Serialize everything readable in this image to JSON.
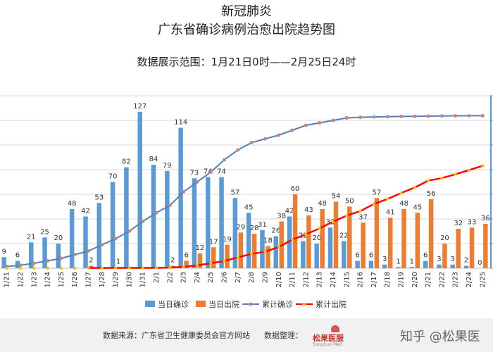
{
  "titles": {
    "line1": "新冠肺炎",
    "line2": "广东省确诊病例治愈出院趋势图",
    "line3": "数据展示范围：1月21日0时——2月25日24时"
  },
  "footer": {
    "source": "数据来源：广东省卫生健康委员会官方网站",
    "organizer": "数据整理：",
    "logo_text": "松果医服",
    "logo_sub": "SongGuo Med",
    "watermark": "知乎 @松果医"
  },
  "colors": {
    "daily_confirmed": "#5b9bd5",
    "daily_discharged": "#ed7d31",
    "cum_confirmed_line": "#4f81bd",
    "cum_confirmed_marker": "#c0877a",
    "cum_discharged_line": "#ff0000",
    "cum_discharged_marker": "#f2c200",
    "gridline": "#d9d9d9",
    "right_axis": "#5b9bd5"
  },
  "chart_data": {
    "type": "bar",
    "categories": [
      "1/21",
      "1/22",
      "1/23",
      "1/24",
      "1/25",
      "1/26",
      "1/27",
      "1/28",
      "1/29",
      "1/30",
      "1/31",
      "2/1",
      "2/2",
      "2/3",
      "2/4",
      "2/5",
      "2/6",
      "2/7",
      "2/8",
      "2/9",
      "2/10",
      "2/11",
      "2/12",
      "2/13",
      "2/14",
      "2/15",
      "2/16",
      "2/17",
      "2/18",
      "2/19",
      "2/20",
      "2/21",
      "2/22",
      "2/23",
      "2/24",
      "2/25"
    ],
    "series": [
      {
        "name": "当日确诊",
        "type": "bar",
        "values": [
          9,
          6,
          21,
          25,
          20,
          48,
          42,
          53,
          70,
          82,
          127,
          84,
          79,
          114,
          73,
          74,
          74,
          57,
          45,
          31,
          26,
          42,
          22,
          20,
          33,
          22,
          6,
          6,
          3,
          1,
          1,
          6,
          3,
          3,
          2,
          0
        ],
        "labels": [
          "9",
          "6",
          "21",
          "25",
          "20",
          "48",
          "42",
          "53",
          "70",
          "82",
          "127",
          "84",
          "79",
          "114",
          "73",
          "74",
          "74",
          "57",
          "45",
          "31",
          "26",
          "42",
          "22",
          "20",
          "33",
          "22",
          "6",
          "6",
          "3",
          "1",
          "1",
          "6",
          "3",
          "3",
          "2",
          "0"
        ]
      },
      {
        "name": "当日出院",
        "type": "bar",
        "values": [
          0,
          0,
          0,
          0,
          0,
          0,
          2,
          0,
          1,
          0,
          0,
          0,
          2,
          6,
          12,
          17,
          19,
          29,
          28,
          18,
          38,
          60,
          43,
          48,
          54,
          50,
          37,
          57,
          41,
          48,
          45,
          56,
          20,
          32,
          33,
          36
        ],
        "labels": [
          "",
          "",
          "",
          "",
          "",
          "",
          "2",
          "",
          "1",
          "",
          "",
          "",
          "2",
          "6",
          "12",
          "17",
          "19",
          "29",
          "28",
          "18",
          "38",
          "60",
          "43",
          "48",
          "54",
          "50",
          "37",
          "57",
          "41",
          "48",
          "45",
          "56",
          "20",
          "32",
          "33",
          "36"
        ]
      },
      {
        "name": "累计确诊",
        "type": "line",
        "values": [
          14,
          24,
          40,
          60,
          80,
          110,
          140,
          190,
          240,
          300,
          380,
          450,
          510,
          620,
          700,
          780,
          880,
          960,
          1020,
          1050,
          1080,
          1120,
          1160,
          1180,
          1200,
          1220,
          1225,
          1228,
          1230,
          1232,
          1233,
          1234,
          1236,
          1237,
          1238,
          1238
        ]
      },
      {
        "name": "累计出院",
        "type": "line",
        "values": [
          0,
          0,
          0,
          0,
          0,
          0,
          2,
          2,
          3,
          3,
          3,
          3,
          5,
          11,
          23,
          40,
          59,
          88,
          116,
          134,
          172,
          232,
          275,
          323,
          377,
          427,
          464,
          521,
          562,
          610,
          655,
          711,
          731,
          763,
          796,
          832
        ]
      }
    ],
    "ylim_left": [
      0,
      140
    ],
    "ylim_right": [
      0,
      1400
    ],
    "grid": true,
    "legend": "bottom"
  }
}
